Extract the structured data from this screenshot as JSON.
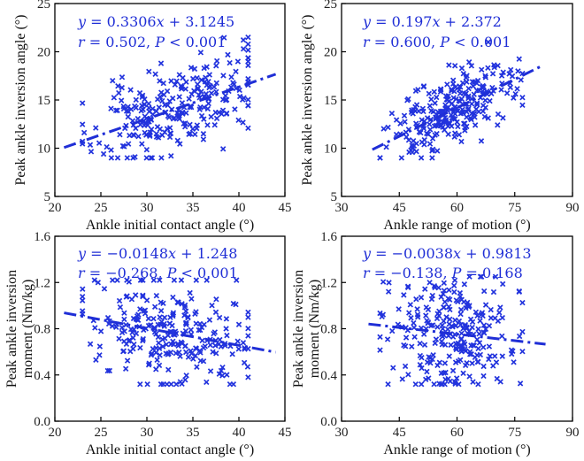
{
  "chart_data": [
    {
      "type": "scatter",
      "xlabel": "Ankle initial contact angle (°)",
      "ylabel": [
        "Peak ankle inversion angle (°)"
      ],
      "xlim": [
        20,
        45
      ],
      "ylim": [
        5,
        25
      ],
      "xticks": [
        20,
        25,
        30,
        35,
        40,
        45
      ],
      "yticks": [
        5,
        10,
        15,
        20,
        25
      ],
      "fit": {
        "slope": 0.3306,
        "intercept": 3.1245,
        "x_range": [
          21,
          44
        ]
      },
      "annotation": {
        "eq_y": "y",
        "eq_rest": "= 0.3306",
        "eq_x": "x",
        "eq_tail": "+ 3.1245",
        "r": "r",
        "r_rest": "= 0.502,",
        "p": "P",
        "p_rest": "< 0.001"
      },
      "points_n": 260,
      "x_mean": 33,
      "x_sd": 4.4,
      "resid_sd": 2.3,
      "x_clip": [
        23,
        41
      ],
      "y_clip": [
        9,
        21.5
      ],
      "seed": 11
    },
    {
      "type": "scatter",
      "xlabel": "Ankle range of motion (°)",
      "ylabel": [
        "Peak ankle inversion angle (°)"
      ],
      "xlim": [
        30,
        90
      ],
      "ylim": [
        5,
        25
      ],
      "xticks": [
        30,
        45,
        60,
        75,
        90
      ],
      "yticks": [
        5,
        10,
        15,
        20,
        25
      ],
      "fit": {
        "slope": 0.197,
        "intercept": 2.372,
        "x_range": [
          38,
          82
        ]
      },
      "annotation": {
        "eq_y": "y",
        "eq_rest": "= 0.197",
        "eq_x": "x",
        "eq_tail": "+ 2.372",
        "r": "r",
        "r_rest": "= 0.600,",
        "p": "P",
        "p_rest": "< 0.001"
      },
      "points_n": 260,
      "x_mean": 58,
      "x_sd": 8,
      "resid_sd": 1.9,
      "x_clip": [
        40,
        77
      ],
      "y_clip": [
        9,
        21
      ],
      "seed": 23
    },
    {
      "type": "scatter",
      "xlabel": "Ankle initial contact angle (°)",
      "ylabel": [
        "Peak ankle inversion",
        "moment (Nm/kg)"
      ],
      "xlim": [
        20,
        45
      ],
      "ylim": [
        0,
        1.6
      ],
      "xticks": [
        20,
        25,
        30,
        35,
        40,
        45
      ],
      "yticks": [
        0.0,
        0.4,
        0.8,
        1.2,
        1.6
      ],
      "fit": {
        "slope": -0.0148,
        "intercept": 1.248,
        "x_range": [
          21,
          44
        ]
      },
      "annotation": {
        "eq_y": "y",
        "eq_rest": "= −0.0148",
        "eq_x": "x",
        "eq_tail": "+ 1.248",
        "r": "r",
        "r_rest": "= −0.268,",
        "p": "P",
        "p_rest": "< 0.001"
      },
      "points_n": 260,
      "x_mean": 33,
      "x_sd": 4.4,
      "resid_sd": 0.22,
      "x_clip": [
        23,
        41
      ],
      "y_clip": [
        0.32,
        1.22
      ],
      "seed": 37
    },
    {
      "type": "scatter",
      "xlabel": "Ankle range of motion (°)",
      "ylabel": [
        "Peak ankle inversion",
        "moment (Nm/kg)"
      ],
      "xlim": [
        30,
        90
      ],
      "ylim": [
        0,
        1.6
      ],
      "xticks": [
        30,
        45,
        60,
        75,
        90
      ],
      "yticks": [
        0.0,
        0.4,
        0.8,
        1.2,
        1.6
      ],
      "fit": {
        "slope": -0.0038,
        "intercept": 0.9813,
        "x_range": [
          37,
          83
        ]
      },
      "annotation": {
        "eq_y": "y",
        "eq_rest": "= −0.0038",
        "eq_x": "x",
        "eq_tail": "+ 0.9813",
        "r": "r",
        "r_rest": "= −0.138,",
        "p": "P",
        "p_rest": "= 0.168"
      },
      "points_n": 260,
      "x_mean": 58,
      "x_sd": 8,
      "resid_sd": 0.24,
      "x_clip": [
        40,
        77
      ],
      "y_clip": [
        0.32,
        1.25
      ],
      "seed": 53
    }
  ],
  "colors": {
    "marker": "#2233dd",
    "fit": "#1f2ed6",
    "annotation": "#1f2ed6",
    "axis": "#000000"
  }
}
